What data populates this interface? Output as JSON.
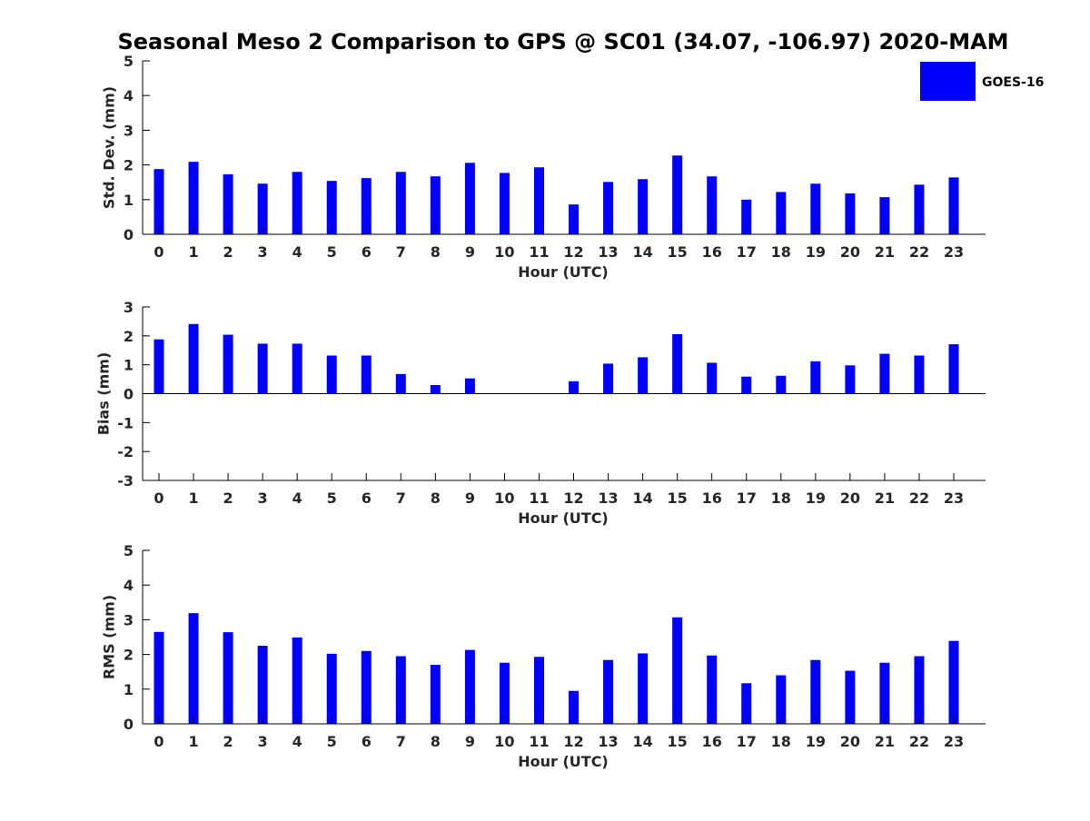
{
  "title": "Seasonal Meso 2 Comparison to GPS @ SC01 (34.07, -106.97) 2020-MAM",
  "legend": {
    "label": "GOES-16",
    "color": "#0000ff",
    "position": "top-right"
  },
  "chart_data": [
    {
      "type": "bar",
      "ylabel": "Std. Dev. (mm)",
      "xlabel": "Hour (UTC)",
      "ylim": [
        0,
        5
      ],
      "yticks": [
        0,
        1,
        2,
        3,
        4,
        5
      ],
      "categories": [
        "0",
        "1",
        "2",
        "3",
        "4",
        "5",
        "6",
        "7",
        "8",
        "9",
        "10",
        "11",
        "12",
        "13",
        "14",
        "15",
        "16",
        "17",
        "18",
        "19",
        "20",
        "21",
        "22",
        "23"
      ],
      "series": [
        {
          "name": "GOES-16",
          "color": "#0000ff",
          "values": [
            1.88,
            2.09,
            1.73,
            1.46,
            1.8,
            1.54,
            1.62,
            1.8,
            1.67,
            2.06,
            1.77,
            1.93,
            0.86,
            1.51,
            1.59,
            2.27,
            1.67,
            1.0,
            1.22,
            1.46,
            1.18,
            1.07,
            1.43,
            1.64
          ]
        }
      ],
      "grid": false
    },
    {
      "type": "bar",
      "ylabel": "Bias (mm)",
      "xlabel": "Hour (UTC)",
      "ylim": [
        -3,
        3
      ],
      "yticks": [
        -3,
        -2,
        -1,
        0,
        1,
        2,
        3
      ],
      "categories": [
        "0",
        "1",
        "2",
        "3",
        "4",
        "5",
        "6",
        "7",
        "8",
        "9",
        "10",
        "11",
        "12",
        "13",
        "14",
        "15",
        "16",
        "17",
        "18",
        "19",
        "20",
        "21",
        "22",
        "23"
      ],
      "series": [
        {
          "name": "GOES-16",
          "color": "#0000ff",
          "values": [
            1.88,
            2.41,
            2.04,
            1.73,
            1.73,
            1.32,
            1.32,
            0.68,
            0.3,
            0.53,
            0.0,
            0.0,
            0.43,
            1.04,
            1.26,
            2.06,
            1.07,
            0.59,
            0.62,
            1.12,
            0.98,
            1.38,
            1.32,
            1.71
          ]
        }
      ],
      "grid": false
    },
    {
      "type": "bar",
      "ylabel": "RMS (mm)",
      "xlabel": "Hour (UTC)",
      "ylim": [
        0,
        5
      ],
      "yticks": [
        0,
        1,
        2,
        3,
        4,
        5
      ],
      "categories": [
        "0",
        "1",
        "2",
        "3",
        "4",
        "5",
        "6",
        "7",
        "8",
        "9",
        "10",
        "11",
        "12",
        "13",
        "14",
        "15",
        "16",
        "17",
        "18",
        "19",
        "20",
        "21",
        "22",
        "23"
      ],
      "series": [
        {
          "name": "GOES-16",
          "color": "#0000ff",
          "values": [
            2.65,
            3.19,
            2.64,
            2.25,
            2.49,
            2.02,
            2.1,
            1.95,
            1.7,
            2.13,
            1.76,
            1.93,
            0.95,
            1.84,
            2.03,
            3.07,
            1.97,
            1.17,
            1.4,
            1.84,
            1.53,
            1.76,
            1.95,
            2.39
          ]
        }
      ],
      "grid": false
    }
  ]
}
